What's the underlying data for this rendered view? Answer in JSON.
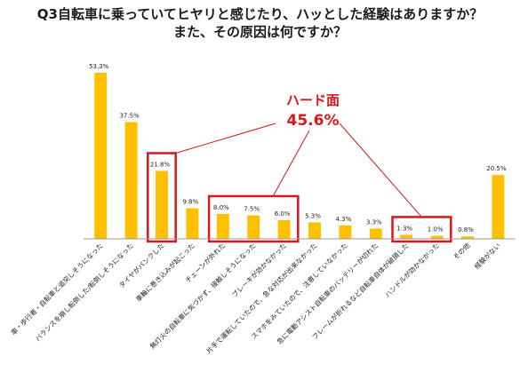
{
  "title": {
    "line1": "Q3自転車に乗っていてヒヤリと感じたり、ハッとした経験はありますか？",
    "line2": "また、その原因は何ですか？"
  },
  "callout": {
    "label": "ハード面",
    "value": "45.6%",
    "color": "#d9161b",
    "highlighted_groups": [
      [
        2
      ],
      [
        4,
        5,
        6
      ],
      [
        10,
        11
      ]
    ]
  },
  "chart_data": {
    "type": "bar",
    "bar_color": "#FFC000",
    "categories": [
      "車・歩行者・自転車と追突しそうになった",
      "バランスを崩し転倒した/転倒しそうになった",
      "タイヤがパンクした",
      "車輪に巻き込みが起こった",
      "チェーンが外れた",
      "無灯火の自転車に気づかず、接触しそうになった",
      "ブレーキが効かなかった",
      "片手で運転していたので、急な対応が出来なかった",
      "スマホをみていたので、注意していなかった",
      "急に電動アシスト自転車のバッテリーが切れた",
      "フレームが折れるなど自転車自体が破損した",
      "ハンドルが効かなかった",
      "その他",
      "経験がない"
    ],
    "values": [
      53.3,
      37.5,
      21.8,
      9.8,
      8.0,
      7.5,
      6.0,
      5.3,
      4.3,
      3.3,
      1.3,
      1.0,
      0.8,
      20.5
    ],
    "value_labels": [
      "53.3%",
      "37.5%",
      "21.8%",
      "9.8%",
      "8.0%",
      "7.5%",
      "6.0%",
      "5.3%",
      "4.3%",
      "3.3%",
      "1.3%",
      "1.0%",
      "0.8%",
      "20.5%"
    ],
    "ylim": [
      0,
      55
    ],
    "grid": false,
    "xlabel": "",
    "ylabel": ""
  }
}
